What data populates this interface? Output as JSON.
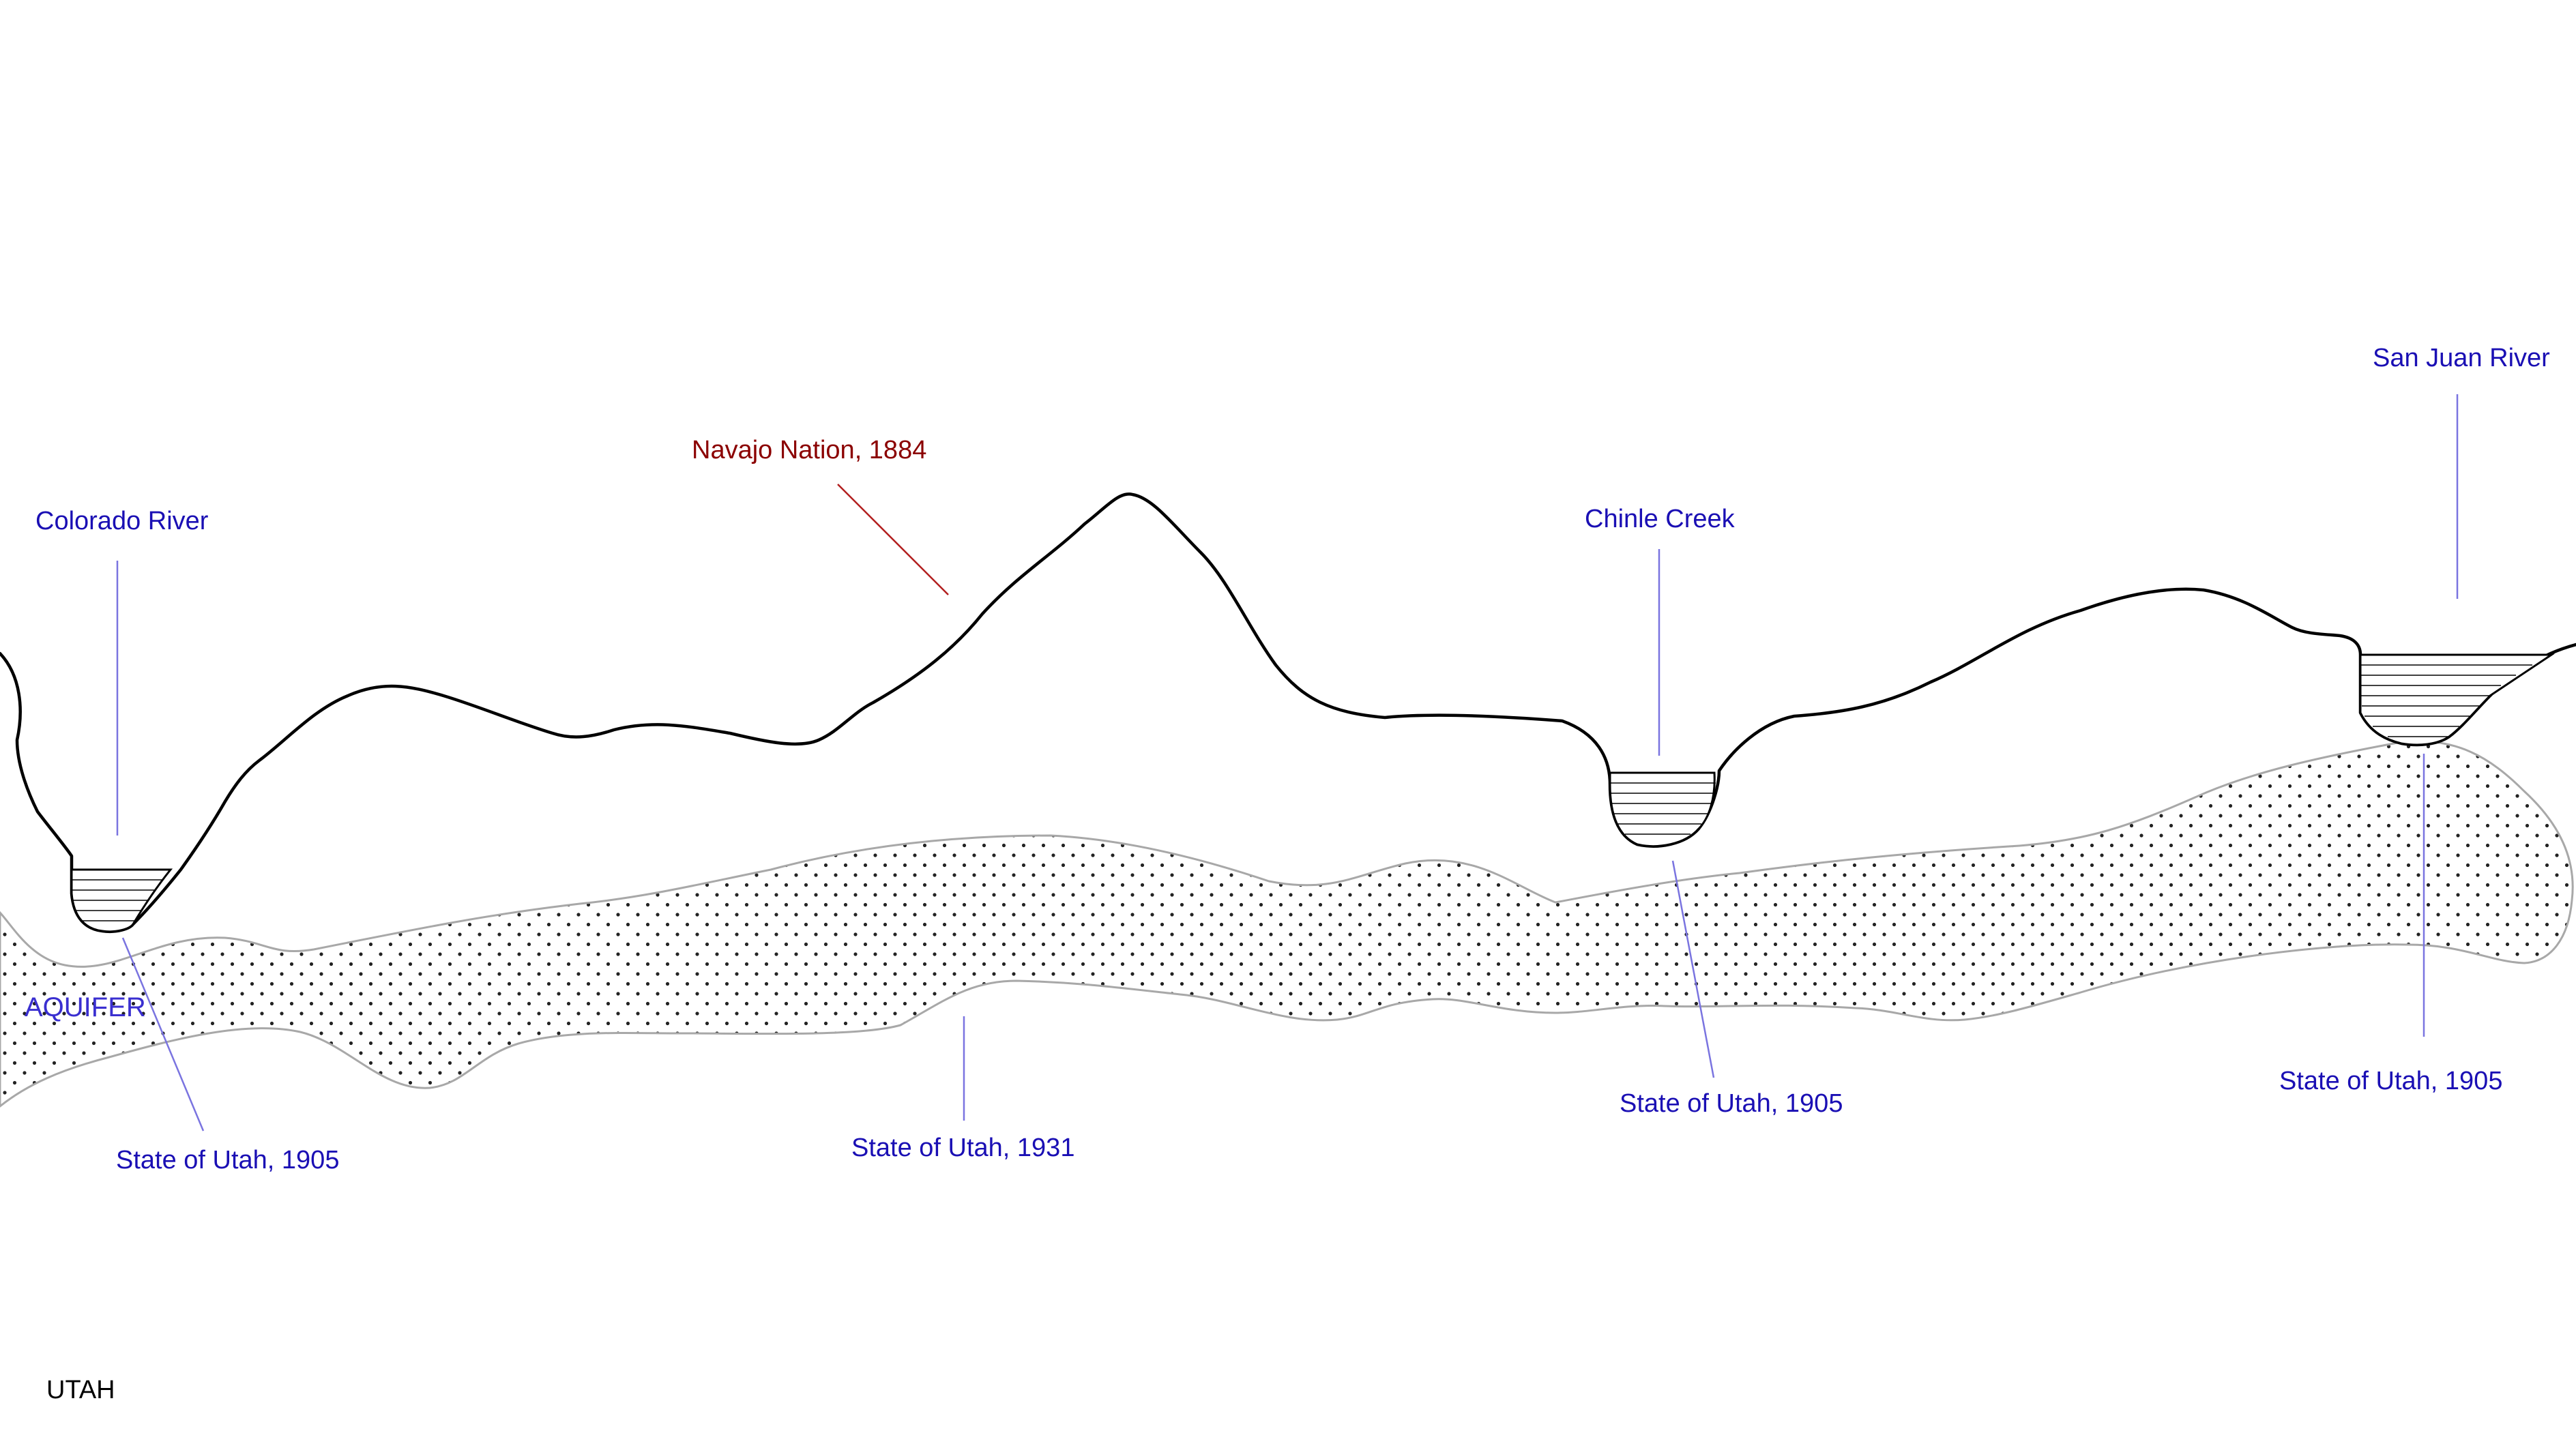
{
  "labels": {
    "colorado_river": "Colorado River",
    "navajo_nation": "Navajo Nation, 1884",
    "chinle_creek": "Chinle Creek",
    "san_juan_river": "San Juan River",
    "aquifer": "AQUIFER",
    "utah_1905_colorado": "State of Utah, 1905",
    "utah_1931_aquifer": "State of Utah, 1931",
    "utah_1905_chinle": "State of Utah, 1905",
    "utah_1905_san_juan": "State of Utah, 1905",
    "utah": "UTAH"
  },
  "colors": {
    "water_label": "#1a0fb4",
    "navajo_label": "#8b0000",
    "terrain_line": "#000000",
    "aquifer_outline": "#a8a8a8"
  }
}
